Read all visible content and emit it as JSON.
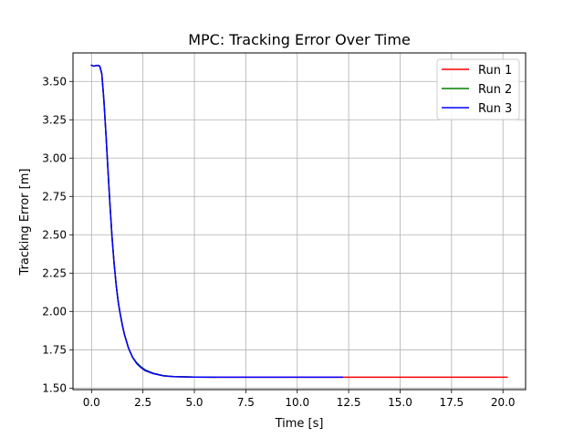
{
  "chart_data": {
    "type": "line",
    "title": "MPC: Tracking Error Over Time",
    "xlabel": "Time [s]",
    "ylabel": "Tracking Error [m]",
    "xlim": [
      -0.9,
      21.1
    ],
    "ylim": [
      1.49,
      3.686
    ],
    "x_ticks": [
      0.0,
      2.5,
      5.0,
      7.5,
      10.0,
      12.5,
      15.0,
      17.5,
      20.0
    ],
    "x_tick_labels": [
      "0.0",
      "2.5",
      "5.0",
      "7.5",
      "10.0",
      "12.5",
      "15.0",
      "17.5",
      "20.0"
    ],
    "y_ticks": [
      1.5,
      1.75,
      2.0,
      2.25,
      2.5,
      2.75,
      3.0,
      3.25,
      3.5
    ],
    "y_tick_labels": [
      "1.50",
      "1.75",
      "2.00",
      "2.25",
      "2.50",
      "2.75",
      "3.00",
      "3.25",
      "3.50"
    ],
    "grid": true,
    "legend_position": "top-right",
    "series": [
      {
        "name": "Run 1",
        "color": "#ff0000",
        "x": [
          0.0,
          0.1,
          0.2,
          0.3,
          0.4,
          0.5,
          0.6,
          0.7,
          0.8,
          0.9,
          1.0,
          1.1,
          1.2,
          1.3,
          1.4,
          1.5,
          1.6,
          1.8,
          2.0,
          2.2,
          2.4,
          2.6,
          3.0,
          3.5,
          4.0,
          5.0,
          6.0,
          8.0,
          10.0,
          12.2,
          14.0,
          16.0,
          18.0,
          20.2
        ],
        "y": [
          3.605,
          3.6,
          3.603,
          3.605,
          3.6,
          3.55,
          3.38,
          3.16,
          2.92,
          2.69,
          2.48,
          2.31,
          2.17,
          2.06,
          1.98,
          1.91,
          1.85,
          1.76,
          1.7,
          1.66,
          1.635,
          1.615,
          1.595,
          1.58,
          1.575,
          1.572,
          1.571,
          1.571,
          1.571,
          1.571,
          1.571,
          1.571,
          1.571,
          1.571
        ]
      },
      {
        "name": "Run 2",
        "color": "#008000",
        "x": [
          0.0,
          0.1,
          0.2,
          0.3,
          0.4,
          0.5,
          0.6,
          0.7,
          0.8,
          0.9,
          1.0,
          1.1,
          1.2,
          1.3,
          1.4,
          1.5,
          1.6,
          1.8,
          2.0,
          2.2,
          2.4,
          2.6,
          3.0,
          3.5,
          4.0,
          5.0,
          6.0
        ],
        "y": [
          3.605,
          3.6,
          3.603,
          3.605,
          3.6,
          3.55,
          3.38,
          3.16,
          2.92,
          2.69,
          2.48,
          2.31,
          2.17,
          2.06,
          1.98,
          1.91,
          1.85,
          1.76,
          1.7,
          1.665,
          1.64,
          1.62,
          1.597,
          1.581,
          1.575,
          1.572,
          1.571
        ]
      },
      {
        "name": "Run 3",
        "color": "#0000ff",
        "x": [
          0.0,
          0.1,
          0.2,
          0.3,
          0.4,
          0.5,
          0.6,
          0.7,
          0.8,
          0.9,
          1.0,
          1.1,
          1.2,
          1.3,
          1.4,
          1.5,
          1.6,
          1.8,
          2.0,
          2.2,
          2.4,
          2.6,
          3.0,
          3.5,
          4.0,
          5.0,
          6.0,
          8.0,
          10.0,
          12.2
        ],
        "y": [
          3.605,
          3.6,
          3.603,
          3.605,
          3.6,
          3.55,
          3.38,
          3.16,
          2.92,
          2.69,
          2.48,
          2.31,
          2.17,
          2.06,
          1.98,
          1.91,
          1.85,
          1.76,
          1.7,
          1.66,
          1.635,
          1.615,
          1.595,
          1.58,
          1.575,
          1.572,
          1.571,
          1.571,
          1.571,
          1.571
        ]
      }
    ]
  }
}
